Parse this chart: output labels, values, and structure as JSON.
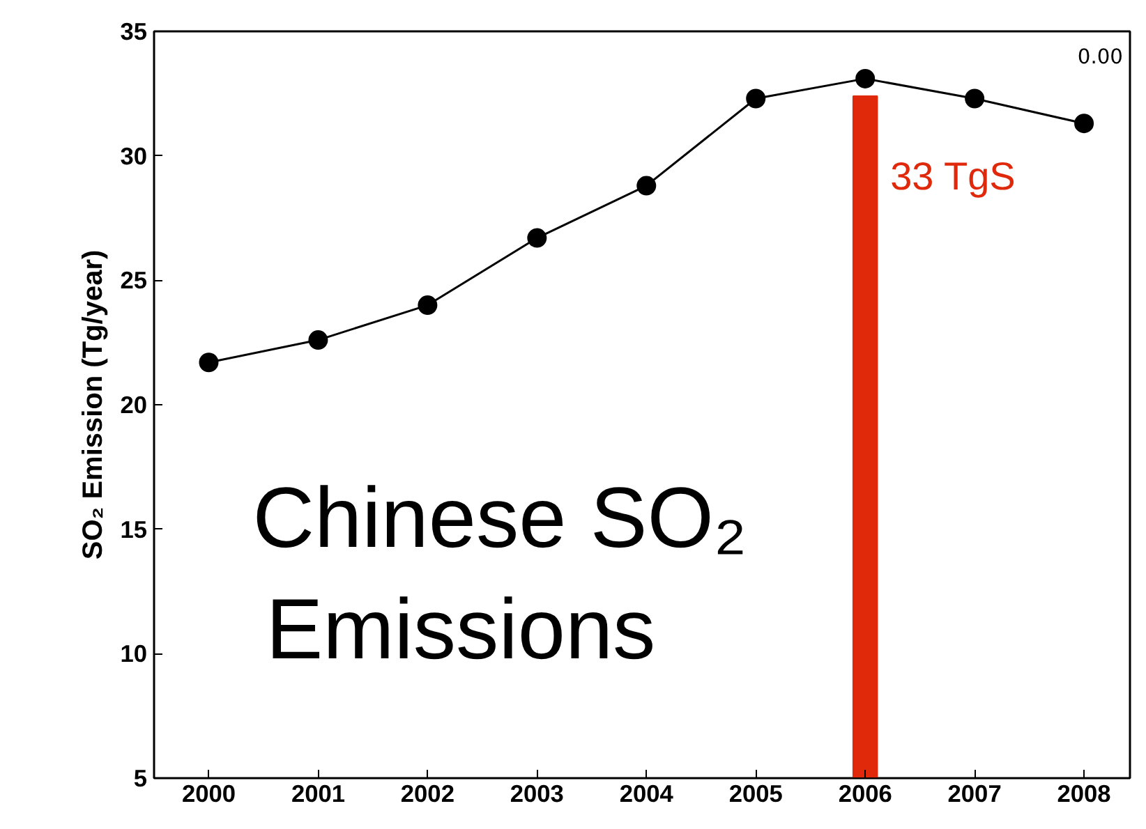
{
  "chart_data": {
    "type": "line",
    "title": "Chinese SO₂ Emissions",
    "ylabel": "SO₂ Emission (Tg/year)",
    "x": [
      2000,
      2001,
      2002,
      2003,
      2004,
      2005,
      2006,
      2007,
      2008
    ],
    "series": [
      {
        "color": "#000000",
        "marker": "circle",
        "values": [
          21.7,
          22.6,
          24.0,
          26.7,
          28.8,
          32.3,
          33.1,
          32.3,
          31.3
        ]
      },
      {
        "type": "bar",
        "color": "#e0280a",
        "x": [
          2006
        ],
        "values": [
          32.4
        ]
      }
    ],
    "xlim": [
      1999.5,
      2008.42
    ],
    "xticks": [
      2000,
      2001,
      2002,
      2003,
      2004,
      2005,
      2006,
      2007,
      2008
    ],
    "ylim": [
      5,
      35
    ],
    "yticks": [
      5,
      10,
      15,
      20,
      25,
      30,
      35
    ],
    "grid": false,
    "annotations": [
      "0.00",
      {
        "text": "33 TgS",
        "x": 2006,
        "y": 32.4
      }
    ]
  }
}
